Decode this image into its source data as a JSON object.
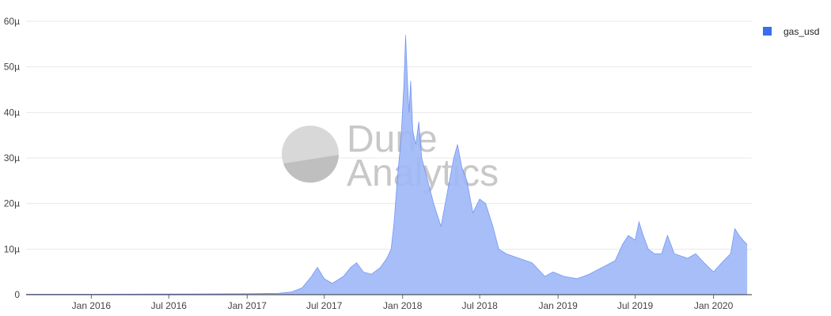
{
  "chart_data": {
    "type": "area",
    "title": "",
    "xlabel": "",
    "ylabel": "",
    "ylim": [
      0,
      60
    ],
    "y_unit_suffix": "µ",
    "y_ticks": [
      0,
      10,
      20,
      30,
      40,
      50,
      60
    ],
    "y_tick_labels": [
      "0",
      "10µ",
      "20µ",
      "30µ",
      "40µ",
      "50µ",
      "60µ"
    ],
    "x_range": [
      "2015-08-01",
      "2020-03-31"
    ],
    "x_ticks": [
      "2016-01-01",
      "2016-07-01",
      "2017-01-01",
      "2017-07-01",
      "2018-01-01",
      "2018-07-01",
      "2019-01-01",
      "2019-07-01",
      "2020-01-01"
    ],
    "x_tick_labels": [
      "Jan 2016",
      "Jul 2016",
      "Jan 2017",
      "Jul 2017",
      "Jan 2018",
      "Jul 2018",
      "Jan 2019",
      "Jul 2019",
      "Jan 2020"
    ],
    "grid": "horizontal",
    "legend_position": "top-right",
    "series": [
      {
        "name": "gas_usd",
        "color": "#3a6df0",
        "fill_color": "#9db7f7",
        "points": [
          [
            "2015-08-01",
            0.1
          ],
          [
            "2016-01-01",
            0.1
          ],
          [
            "2016-07-01",
            0.15
          ],
          [
            "2017-01-01",
            0.2
          ],
          [
            "2017-03-15",
            0.3
          ],
          [
            "2017-04-15",
            0.6
          ],
          [
            "2017-05-10",
            1.5
          ],
          [
            "2017-06-01",
            4
          ],
          [
            "2017-06-15",
            6
          ],
          [
            "2017-07-01",
            3.5
          ],
          [
            "2017-07-20",
            2.5
          ],
          [
            "2017-08-15",
            4
          ],
          [
            "2017-09-01",
            6
          ],
          [
            "2017-09-15",
            7
          ],
          [
            "2017-10-01",
            5
          ],
          [
            "2017-10-20",
            4.5
          ],
          [
            "2017-11-10",
            6
          ],
          [
            "2017-11-25",
            8
          ],
          [
            "2017-12-05",
            10
          ],
          [
            "2017-12-12",
            16
          ],
          [
            "2017-12-20",
            26
          ],
          [
            "2017-12-28",
            34
          ],
          [
            "2018-01-04",
            46
          ],
          [
            "2018-01-08",
            57
          ],
          [
            "2018-01-12",
            48
          ],
          [
            "2018-01-16",
            40
          ],
          [
            "2018-01-20",
            47
          ],
          [
            "2018-01-25",
            36
          ],
          [
            "2018-02-01",
            33
          ],
          [
            "2018-02-08",
            38
          ],
          [
            "2018-02-15",
            30
          ],
          [
            "2018-03-01",
            25
          ],
          [
            "2018-03-15",
            20
          ],
          [
            "2018-04-01",
            15
          ],
          [
            "2018-04-15",
            22
          ],
          [
            "2018-05-01",
            30
          ],
          [
            "2018-05-10",
            33
          ],
          [
            "2018-05-20",
            28
          ],
          [
            "2018-06-01",
            25
          ],
          [
            "2018-06-15",
            18
          ],
          [
            "2018-07-01",
            21
          ],
          [
            "2018-07-15",
            20
          ],
          [
            "2018-08-01",
            15
          ],
          [
            "2018-08-15",
            10
          ],
          [
            "2018-09-01",
            9
          ],
          [
            "2018-10-01",
            8
          ],
          [
            "2018-11-01",
            7
          ],
          [
            "2018-12-01",
            4
          ],
          [
            "2018-12-20",
            5
          ],
          [
            "2019-01-15",
            4
          ],
          [
            "2019-02-15",
            3.5
          ],
          [
            "2019-03-15",
            4.5
          ],
          [
            "2019-04-15",
            6
          ],
          [
            "2019-05-15",
            7.5
          ],
          [
            "2019-06-01",
            11
          ],
          [
            "2019-06-15",
            13
          ],
          [
            "2019-07-01",
            12
          ],
          [
            "2019-07-10",
            16
          ],
          [
            "2019-07-20",
            13
          ],
          [
            "2019-08-01",
            10
          ],
          [
            "2019-08-15",
            9
          ],
          [
            "2019-09-01",
            9
          ],
          [
            "2019-09-15",
            13
          ],
          [
            "2019-10-01",
            9
          ],
          [
            "2019-11-01",
            8
          ],
          [
            "2019-11-20",
            9
          ],
          [
            "2019-12-10",
            7
          ],
          [
            "2020-01-01",
            5
          ],
          [
            "2020-01-20",
            7
          ],
          [
            "2020-02-10",
            9
          ],
          [
            "2020-02-20",
            14.5
          ],
          [
            "2020-03-01",
            13
          ],
          [
            "2020-03-10",
            12
          ],
          [
            "2020-03-20",
            11
          ]
        ]
      }
    ]
  },
  "legend": {
    "items": [
      {
        "label": "gas_usd",
        "color": "#3a6df0"
      }
    ]
  },
  "watermark": {
    "line1": "Dune",
    "line2": "Analytics"
  }
}
